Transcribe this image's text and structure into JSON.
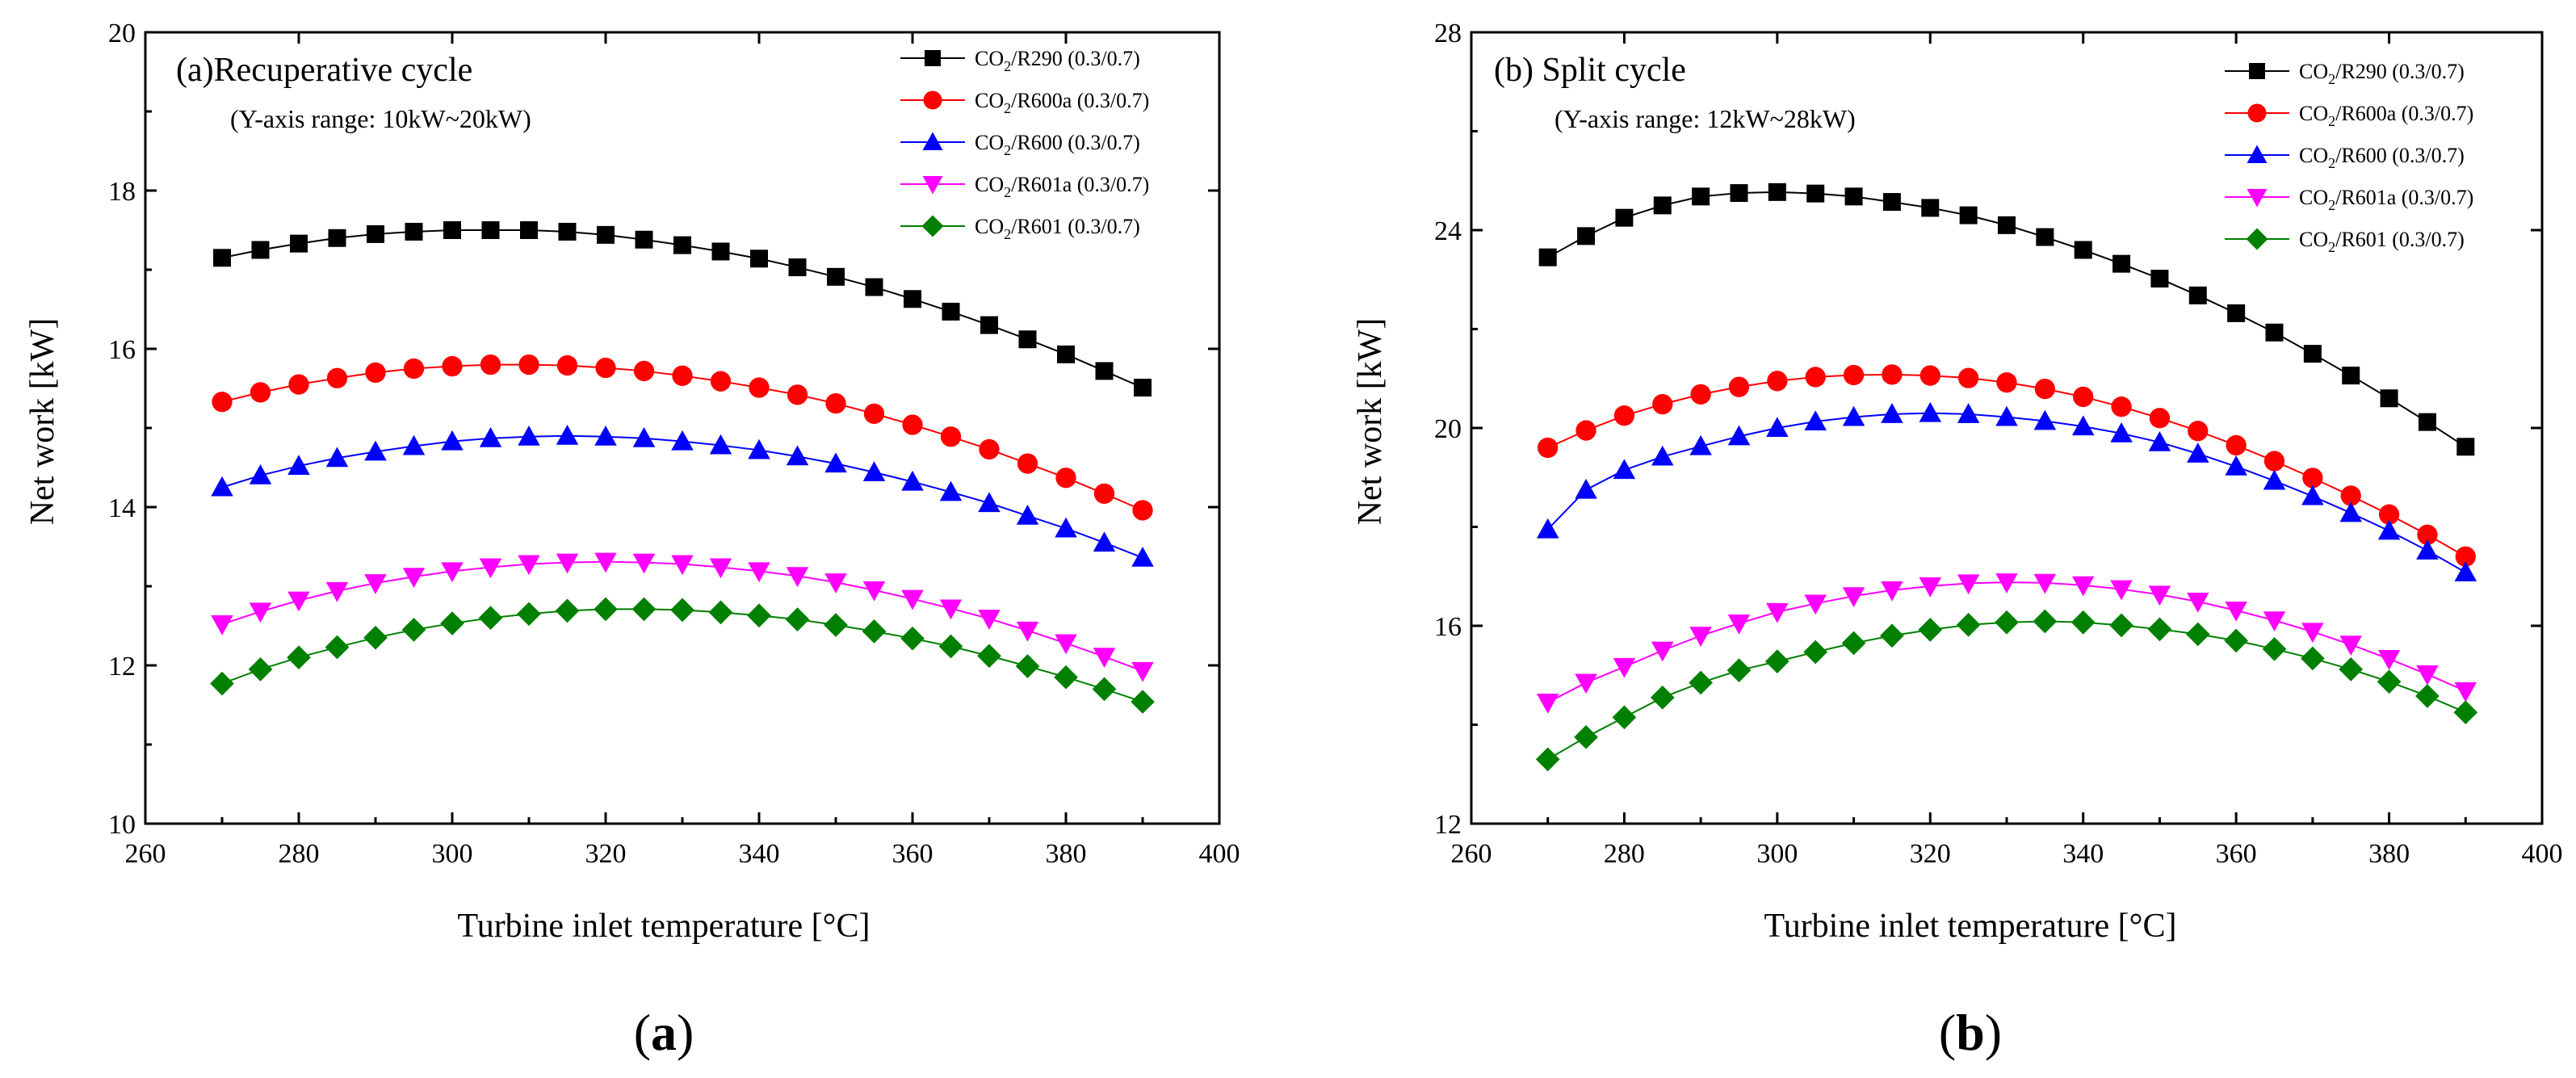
{
  "colors": {
    "R290": "#000000",
    "R600a": "#ff0000",
    "R600": "#0000ff",
    "R601a": "#ff00ff",
    "R601": "#008000"
  },
  "panels": [
    {
      "label_open": "(",
      "label_letter": "a",
      "label_close": ")"
    },
    {
      "label_open": "(",
      "label_letter": "b",
      "label_close": ")"
    }
  ],
  "chart_data": [
    {
      "type": "line",
      "title": "(a)Recuperative cycle",
      "subtitle": "(Y-axis range: 10kW~20kW)",
      "xlabel": "Turbine inlet temperature [°C]",
      "ylabel": "Net work [kW]",
      "xlim": [
        260,
        400
      ],
      "ylim": [
        10,
        20
      ],
      "xticks": [
        260,
        280,
        300,
        320,
        340,
        360,
        380,
        400
      ],
      "yticks": [
        10,
        12,
        14,
        16,
        18,
        20
      ],
      "legend_position": "top-right",
      "x": [
        270,
        275,
        280,
        285,
        290,
        295,
        300,
        305,
        310,
        315,
        320,
        325,
        330,
        335,
        340,
        345,
        350,
        355,
        360,
        365,
        370,
        375,
        380,
        385,
        390
      ],
      "series": [
        {
          "name": "CO2/R290 (0.3/0.7)",
          "label_pre": "CO",
          "label_sub": "2",
          "label_post": "/R290 (0.3/0.7)",
          "marker": "square",
          "color_key": "R290",
          "values": [
            17.15,
            17.25,
            17.33,
            17.4,
            17.45,
            17.48,
            17.5,
            17.5,
            17.5,
            17.48,
            17.44,
            17.38,
            17.31,
            17.23,
            17.14,
            17.03,
            16.91,
            16.78,
            16.63,
            16.47,
            16.3,
            16.12,
            15.93,
            15.72,
            15.51
          ]
        },
        {
          "name": "CO2/R600a (0.3/0.7)",
          "label_pre": "CO",
          "label_sub": "2",
          "label_post": "/R600a (0.3/0.7)",
          "marker": "circle",
          "color_key": "R600a",
          "values": [
            15.33,
            15.45,
            15.55,
            15.63,
            15.7,
            15.75,
            15.78,
            15.8,
            15.8,
            15.79,
            15.76,
            15.72,
            15.66,
            15.59,
            15.51,
            15.42,
            15.31,
            15.18,
            15.04,
            14.89,
            14.73,
            14.55,
            14.37,
            14.17,
            13.96
          ]
        },
        {
          "name": "CO2/R600 (0.3/0.7)",
          "label_pre": "CO",
          "label_sub": "2",
          "label_post": "/R600 (0.3/0.7)",
          "marker": "triangle-up",
          "color_key": "R600",
          "values": [
            14.25,
            14.4,
            14.52,
            14.62,
            14.7,
            14.77,
            14.83,
            14.87,
            14.89,
            14.9,
            14.89,
            14.87,
            14.83,
            14.78,
            14.72,
            14.64,
            14.55,
            14.44,
            14.32,
            14.19,
            14.05,
            13.89,
            13.73,
            13.55,
            13.36
          ]
        },
        {
          "name": "CO2/R601a (0.3/0.7)",
          "label_pre": "CO",
          "label_sub": "2",
          "label_post": "/R601a (0.3/0.7)",
          "marker": "triangle-down",
          "color_key": "R601a",
          "values": [
            12.52,
            12.68,
            12.82,
            12.94,
            13.04,
            13.12,
            13.19,
            13.24,
            13.28,
            13.3,
            13.31,
            13.3,
            13.28,
            13.24,
            13.19,
            13.13,
            13.05,
            12.95,
            12.84,
            12.72,
            12.59,
            12.44,
            12.28,
            12.11,
            11.93
          ]
        },
        {
          "name": "CO2/R601 (0.3/0.7)",
          "label_pre": "CO",
          "label_sub": "2",
          "label_post": "/R601 (0.3/0.7)",
          "marker": "diamond",
          "color_key": "R601",
          "values": [
            11.77,
            11.95,
            12.1,
            12.23,
            12.35,
            12.45,
            12.53,
            12.6,
            12.65,
            12.69,
            12.71,
            12.71,
            12.7,
            12.67,
            12.63,
            12.58,
            12.51,
            12.43,
            12.34,
            12.24,
            12.12,
            11.99,
            11.85,
            11.7,
            11.54
          ]
        }
      ]
    },
    {
      "type": "line",
      "title": "(b) Split cycle",
      "subtitle": "(Y-axis range: 12kW~28kW)",
      "xlabel": "Turbine inlet temperature [°C]",
      "ylabel": "Net work [kW]",
      "xlim": [
        260,
        400
      ],
      "ylim": [
        12,
        28
      ],
      "xticks": [
        260,
        280,
        300,
        320,
        340,
        360,
        380,
        400
      ],
      "yticks": [
        12,
        16,
        20,
        24,
        28
      ],
      "legend_position": "top-right",
      "x": [
        270,
        275,
        280,
        285,
        290,
        295,
        300,
        305,
        310,
        315,
        320,
        325,
        330,
        335,
        340,
        345,
        350,
        355,
        360,
        365,
        370,
        375,
        380,
        385,
        390
      ],
      "series": [
        {
          "name": "CO2/R290 (0.3/0.7)",
          "label_pre": "CO",
          "label_sub": "2",
          "label_post": "/R290 (0.3/0.7)",
          "marker": "square",
          "color_key": "R290",
          "values": [
            23.45,
            23.88,
            24.25,
            24.5,
            24.68,
            24.75,
            24.77,
            24.74,
            24.68,
            24.57,
            24.45,
            24.3,
            24.1,
            23.86,
            23.6,
            23.32,
            23.02,
            22.68,
            22.32,
            21.93,
            21.5,
            21.06,
            20.6,
            20.12,
            19.62
          ]
        },
        {
          "name": "CO2/R600a (0.3/0.7)",
          "label_pre": "CO",
          "label_sub": "2",
          "label_post": "/R600a (0.3/0.7)",
          "marker": "circle",
          "color_key": "R600a",
          "values": [
            19.6,
            19.95,
            20.25,
            20.48,
            20.68,
            20.83,
            20.95,
            21.03,
            21.07,
            21.08,
            21.06,
            21.01,
            20.92,
            20.79,
            20.63,
            20.43,
            20.2,
            19.94,
            19.65,
            19.33,
            18.99,
            18.63,
            18.25,
            17.84,
            17.4
          ]
        },
        {
          "name": "CO2/R600 (0.3/0.7)",
          "label_pre": "CO",
          "label_sub": "2",
          "label_post": "/R600 (0.3/0.7)",
          "marker": "triangle-up",
          "color_key": "R600",
          "values": [
            17.95,
            18.75,
            19.15,
            19.42,
            19.63,
            19.83,
            20.0,
            20.13,
            20.22,
            20.28,
            20.3,
            20.28,
            20.22,
            20.14,
            20.03,
            19.89,
            19.71,
            19.48,
            19.22,
            18.93,
            18.62,
            18.28,
            17.92,
            17.52,
            17.08
          ]
        },
        {
          "name": "CO2/R601a (0.3/0.7)",
          "label_pre": "CO",
          "label_sub": "2",
          "label_post": "/R601a (0.3/0.7)",
          "marker": "triangle-down",
          "color_key": "R601a",
          "values": [
            14.45,
            14.85,
            15.17,
            15.5,
            15.8,
            16.05,
            16.28,
            16.45,
            16.6,
            16.72,
            16.8,
            16.86,
            16.88,
            16.87,
            16.82,
            16.74,
            16.63,
            16.49,
            16.31,
            16.11,
            15.88,
            15.62,
            15.33,
            15.02,
            14.68
          ]
        },
        {
          "name": "CO2/R601 (0.3/0.7)",
          "label_pre": "CO",
          "label_sub": "2",
          "label_post": "/R601 (0.3/0.7)",
          "marker": "diamond",
          "color_key": "R601",
          "values": [
            13.3,
            13.75,
            14.15,
            14.55,
            14.85,
            15.1,
            15.28,
            15.47,
            15.65,
            15.8,
            15.92,
            16.02,
            16.07,
            16.09,
            16.07,
            16.01,
            15.93,
            15.83,
            15.7,
            15.53,
            15.34,
            15.12,
            14.87,
            14.58,
            14.25
          ]
        }
      ]
    }
  ]
}
